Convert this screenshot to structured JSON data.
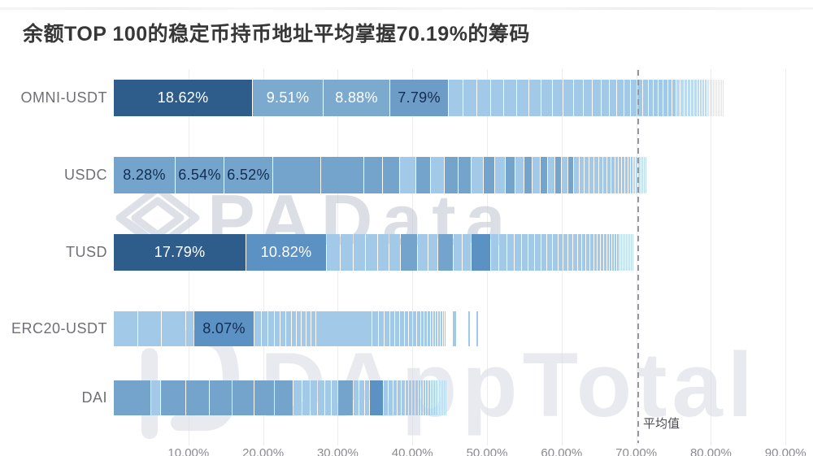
{
  "title": "余额TOP 100的稳定币持币地址平均掌握70.19%的筹码",
  "watermarks": {
    "center_text": "PAData",
    "center_logo": "padata-ribbon-logo",
    "bottom_text": "DAppTotal",
    "bottom_logo": "dapptotal-d-logo"
  },
  "average_line": {
    "label": "平均值",
    "value": 70.19
  },
  "colors": {
    "d": "#2e5d8b",
    "m": "#5c92c3",
    "n": "#6d9dc7",
    "u": "#74a4cc",
    "o": "#7caace",
    "l": "#a3c9e8",
    "l2": "#badaf0",
    "xl": "#d5e8f6",
    "g": "transparent",
    "label_white": "#ffffff",
    "label_dark": "#132c52",
    "grid": "#ededf1",
    "avg_dash": "#96969c"
  },
  "chart_data": {
    "type": "bar",
    "orientation": "horizontal-stacked",
    "title": "余额TOP 100的稳定币持币地址平均掌握70.19%的筹码",
    "categories": [
      "OMNI-USDT",
      "USDC",
      "TUSD",
      "ERC20-USDT",
      "DAI"
    ],
    "unit": "%",
    "xlim": [
      0,
      90
    ],
    "grid": true,
    "average": 70.19,
    "ticks": [
      {
        "label": "10.00%",
        "value": 10
      },
      {
        "label": "20.00%",
        "value": 20
      },
      {
        "label": "30.00%",
        "value": 30
      },
      {
        "label": "40.00%",
        "value": 40
      },
      {
        "label": "50.00%",
        "value": 50
      },
      {
        "label": "60.00%",
        "value": 60
      },
      {
        "label": "70.00%",
        "value": 70
      },
      {
        "label": "80.00%",
        "value": 80
      },
      {
        "label": "90.00%",
        "value": 90
      }
    ],
    "labeled_values": {
      "OMNI-USDT": [
        18.62,
        9.51,
        8.88,
        7.79
      ],
      "USDC": [
        8.28,
        6.54,
        6.52
      ],
      "TUSD": [
        17.79,
        10.82
      ],
      "ERC20-USDT": [
        8.07
      ],
      "DAI": []
    },
    "total_estimate": {
      "OMNI-USDT": 81.4,
      "USDC": 71.4,
      "TUSD": 69.6,
      "ERC20-USDT": 50.1,
      "DAI": 44.3
    },
    "rows": [
      {
        "name": "OMNI-USDT",
        "segments": [
          [
            18.62,
            "d",
            "18.62%",
            "w"
          ],
          [
            9.51,
            "o",
            "9.51%",
            "w"
          ],
          [
            8.88,
            "o",
            "8.88%",
            "w"
          ],
          [
            7.79,
            "n",
            "7.79%",
            "k"
          ],
          [
            2.0,
            "l"
          ],
          [
            1.9,
            "l"
          ],
          [
            1.8,
            "l"
          ],
          [
            1.75,
            "l"
          ],
          [
            1.7,
            "l"
          ],
          [
            1.65,
            "l"
          ],
          [
            1.6,
            "l"
          ],
          [
            1.5,
            "l"
          ],
          [
            1.45,
            "l"
          ],
          [
            1.4,
            "l"
          ],
          [
            1.3,
            "l"
          ],
          [
            1.25,
            "l"
          ],
          [
            1.15,
            "l"
          ],
          [
            1.05,
            "l"
          ],
          [
            1.0,
            "l"
          ],
          [
            0.95,
            "l"
          ],
          [
            0.9,
            "l"
          ],
          [
            0.85,
            "l"
          ],
          [
            0.8,
            "l"
          ],
          [
            0.75,
            "l"
          ],
          [
            0.7,
            "l"
          ],
          [
            0.68,
            "l"
          ],
          [
            0.65,
            "l"
          ],
          [
            0.6,
            "l"
          ],
          [
            0.58,
            "l"
          ],
          [
            0.55,
            "l"
          ],
          [
            0.52,
            "l2"
          ],
          [
            0.5,
            "l2"
          ],
          [
            0.48,
            "l2"
          ],
          [
            0.45,
            "l2"
          ],
          [
            0.42,
            "l2"
          ],
          [
            0.4,
            "l2"
          ],
          [
            0.38,
            "l2"
          ],
          [
            0.35,
            "l2"
          ],
          [
            0.33,
            "l2"
          ],
          [
            0.3,
            "l2"
          ],
          [
            0.28,
            "xl"
          ],
          [
            0.26,
            "xl"
          ],
          [
            0.24,
            "xl"
          ],
          [
            0.22,
            "xl"
          ],
          [
            0.2,
            "xl"
          ],
          [
            0.18,
            "xl"
          ],
          [
            0.17,
            "xl"
          ],
          [
            0.16,
            "xl"
          ],
          [
            0.15,
            "xl"
          ],
          [
            0.14,
            "xl"
          ]
        ]
      },
      {
        "name": "USDC",
        "segments": [
          [
            8.28,
            "u",
            "8.28%",
            "k"
          ],
          [
            6.54,
            "u",
            "6.54%",
            "k"
          ],
          [
            6.52,
            "u",
            "6.52%",
            "k"
          ],
          [
            6.4,
            "u"
          ],
          [
            5.8,
            "u"
          ],
          [
            2.5,
            "u"
          ],
          [
            2.3,
            "u"
          ],
          [
            2.2,
            "l"
          ],
          [
            2.0,
            "u"
          ],
          [
            1.9,
            "l"
          ],
          [
            1.8,
            "u"
          ],
          [
            1.7,
            "u"
          ],
          [
            1.6,
            "l"
          ],
          [
            1.5,
            "u"
          ],
          [
            1.4,
            "l"
          ],
          [
            1.3,
            "u"
          ],
          [
            1.2,
            "l"
          ],
          [
            1.1,
            "u"
          ],
          [
            1.05,
            "l"
          ],
          [
            1.0,
            "u"
          ],
          [
            0.95,
            "l"
          ],
          [
            0.9,
            "u"
          ],
          [
            0.85,
            "l"
          ],
          [
            0.8,
            "u"
          ],
          [
            0.75,
            "l"
          ],
          [
            0.7,
            "l"
          ],
          [
            0.68,
            "l"
          ],
          [
            0.65,
            "l"
          ],
          [
            0.6,
            "l"
          ],
          [
            0.58,
            "l"
          ],
          [
            0.55,
            "l"
          ],
          [
            0.52,
            "l"
          ],
          [
            0.5,
            "l"
          ],
          [
            0.48,
            "l"
          ],
          [
            0.45,
            "l"
          ],
          [
            0.42,
            "l"
          ],
          [
            0.4,
            "l"
          ],
          [
            0.38,
            "l"
          ],
          [
            0.35,
            "l"
          ],
          [
            0.32,
            "l2"
          ],
          [
            0.3,
            "l2"
          ],
          [
            0.28,
            "l2"
          ],
          [
            0.26,
            "l2"
          ],
          [
            0.24,
            "l2"
          ],
          [
            0.22,
            "l2"
          ],
          [
            0.2,
            "l2"
          ]
        ]
      },
      {
        "name": "TUSD",
        "segments": [
          [
            17.79,
            "d",
            "17.79%",
            "w"
          ],
          [
            10.82,
            "m",
            "10.82%",
            "w"
          ],
          [
            1.8,
            "l"
          ],
          [
            1.7,
            "l"
          ],
          [
            1.65,
            "l"
          ],
          [
            1.6,
            "l"
          ],
          [
            1.55,
            "l"
          ],
          [
            1.5,
            "l"
          ],
          [
            2.3,
            "u"
          ],
          [
            1.4,
            "l"
          ],
          [
            1.35,
            "l"
          ],
          [
            2.1,
            "u"
          ],
          [
            1.25,
            "l"
          ],
          [
            1.2,
            "l"
          ],
          [
            2.6,
            "m"
          ],
          [
            1.1,
            "l"
          ],
          [
            1.05,
            "l"
          ],
          [
            1.0,
            "l"
          ],
          [
            0.95,
            "l"
          ],
          [
            0.9,
            "l"
          ],
          [
            0.88,
            "l"
          ],
          [
            0.85,
            "l"
          ],
          [
            0.8,
            "l"
          ],
          [
            0.78,
            "l"
          ],
          [
            0.75,
            "l"
          ],
          [
            0.7,
            "l"
          ],
          [
            0.68,
            "l"
          ],
          [
            0.65,
            "l"
          ],
          [
            0.6,
            "l"
          ],
          [
            0.58,
            "l"
          ],
          [
            0.55,
            "l"
          ],
          [
            0.52,
            "l"
          ],
          [
            0.5,
            "l"
          ],
          [
            0.48,
            "l"
          ],
          [
            0.45,
            "l"
          ],
          [
            0.42,
            "l"
          ],
          [
            0.4,
            "l"
          ],
          [
            0.38,
            "l"
          ],
          [
            0.35,
            "l"
          ],
          [
            0.33,
            "l"
          ],
          [
            0.3,
            "l"
          ],
          [
            0.28,
            "l"
          ],
          [
            0.26,
            "l2"
          ],
          [
            0.24,
            "l2"
          ],
          [
            0.22,
            "l2"
          ],
          [
            0.2,
            "l2"
          ],
          [
            0.19,
            "l2"
          ],
          [
            0.18,
            "l2"
          ],
          [
            0.17,
            "l2"
          ],
          [
            0.16,
            "l2"
          ],
          [
            0.15,
            "l2"
          ]
        ]
      },
      {
        "name": "ERC20-USDT",
        "segments": [
          [
            3.3,
            "l"
          ],
          [
            3.2,
            "l"
          ],
          [
            3.3,
            "l"
          ],
          [
            1.1,
            "l"
          ],
          [
            8.07,
            "m",
            "8.07%",
            "k"
          ],
          [
            0.95,
            "l"
          ],
          [
            0.9,
            "l"
          ],
          [
            0.85,
            "l"
          ],
          [
            0.8,
            "l"
          ],
          [
            0.78,
            "l"
          ],
          [
            0.75,
            "l"
          ],
          [
            0.7,
            "l"
          ],
          [
            0.68,
            "l"
          ],
          [
            0.65,
            "l"
          ],
          [
            0.62,
            "l"
          ],
          [
            0.6,
            "l"
          ],
          [
            7.5,
            "l"
          ],
          [
            0.85,
            "l"
          ],
          [
            0.8,
            "l"
          ],
          [
            0.75,
            "l"
          ],
          [
            0.7,
            "l"
          ],
          [
            0.65,
            "l"
          ],
          [
            0.6,
            "l"
          ],
          [
            0.58,
            "l"
          ],
          [
            0.55,
            "l"
          ],
          [
            0.52,
            "l"
          ],
          [
            0.5,
            "l"
          ],
          [
            0.45,
            "l"
          ],
          [
            0.42,
            "l"
          ],
          [
            0.4,
            "l"
          ],
          [
            0.38,
            "l"
          ],
          [
            0.35,
            "l"
          ],
          [
            0.32,
            "l"
          ],
          [
            0.3,
            "l"
          ],
          [
            0.28,
            "l"
          ],
          [
            0.26,
            "l"
          ],
          [
            0.24,
            "l"
          ],
          [
            0.9,
            "g"
          ],
          [
            0.5,
            "l"
          ],
          [
            1.5,
            "g"
          ],
          [
            0.35,
            "l"
          ],
          [
            0.8,
            "g"
          ],
          [
            0.3,
            "l"
          ]
        ]
      },
      {
        "name": "DAI",
        "segments": [
          [
            5.0,
            "u"
          ],
          [
            1.3,
            "l"
          ],
          [
            3.4,
            "u"
          ],
          [
            3.2,
            "u"
          ],
          [
            3.0,
            "u"
          ],
          [
            2.9,
            "u"
          ],
          [
            2.7,
            "u"
          ],
          [
            2.5,
            "u"
          ],
          [
            1.2,
            "l"
          ],
          [
            1.1,
            "l"
          ],
          [
            1.0,
            "l"
          ],
          [
            0.95,
            "l"
          ],
          [
            0.9,
            "l"
          ],
          [
            0.85,
            "l"
          ],
          [
            2.1,
            "u"
          ],
          [
            0.8,
            "l"
          ],
          [
            0.75,
            "l"
          ],
          [
            0.7,
            "l"
          ],
          [
            1.9,
            "m"
          ],
          [
            0.65,
            "l"
          ],
          [
            0.6,
            "l"
          ],
          [
            0.55,
            "l"
          ],
          [
            0.52,
            "l"
          ],
          [
            0.5,
            "l"
          ],
          [
            0.48,
            "l"
          ],
          [
            0.45,
            "l"
          ],
          [
            0.42,
            "l"
          ],
          [
            0.4,
            "l"
          ],
          [
            0.38,
            "l"
          ],
          [
            0.35,
            "l"
          ],
          [
            0.33,
            "l"
          ],
          [
            0.3,
            "l"
          ],
          [
            0.28,
            "l"
          ],
          [
            0.26,
            "l"
          ],
          [
            0.24,
            "l"
          ],
          [
            0.22,
            "l"
          ],
          [
            0.2,
            "l"
          ],
          [
            0.18,
            "l2"
          ],
          [
            0.17,
            "l2"
          ],
          [
            0.16,
            "l2"
          ],
          [
            0.15,
            "l2"
          ],
          [
            0.14,
            "l2"
          ],
          [
            0.13,
            "l2"
          ]
        ]
      }
    ]
  }
}
